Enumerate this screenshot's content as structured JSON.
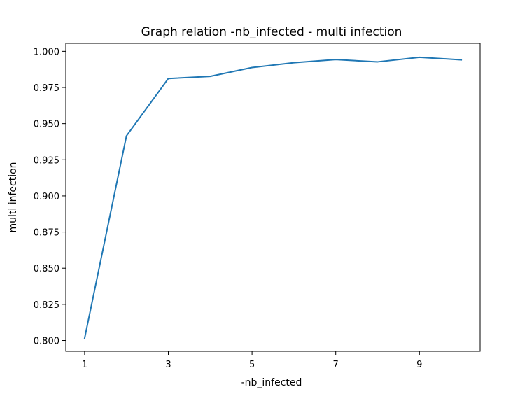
{
  "chart_data": {
    "type": "line",
    "title": "Graph relation -nb_infected - multi infection",
    "xlabel": "-nb_infected",
    "ylabel": "multi infection",
    "x": [
      1,
      2,
      3,
      4,
      5,
      6,
      7,
      8,
      9,
      10
    ],
    "series": [
      {
        "values": [
          0.8015,
          0.9415,
          0.9812,
          0.9827,
          0.9888,
          0.9921,
          0.9943,
          0.9927,
          0.9959,
          0.9941
        ],
        "color": "#1f77b4"
      }
    ],
    "xlim": [
      0.55,
      10.45
    ],
    "ylim": [
      0.7925,
      1.0055
    ],
    "xticks": [
      1,
      3,
      5,
      7,
      9
    ],
    "xtick_labels": [
      "1",
      "3",
      "5",
      "7",
      "9"
    ],
    "yticks": [
      0.8,
      0.825,
      0.85,
      0.875,
      0.9,
      0.925,
      0.95,
      0.975,
      1.0
    ],
    "ytick_labels": [
      "0.800",
      "0.825",
      "0.850",
      "0.875",
      "0.900",
      "0.925",
      "0.950",
      "0.975",
      "1.000"
    ],
    "grid": false,
    "legend": "none"
  }
}
